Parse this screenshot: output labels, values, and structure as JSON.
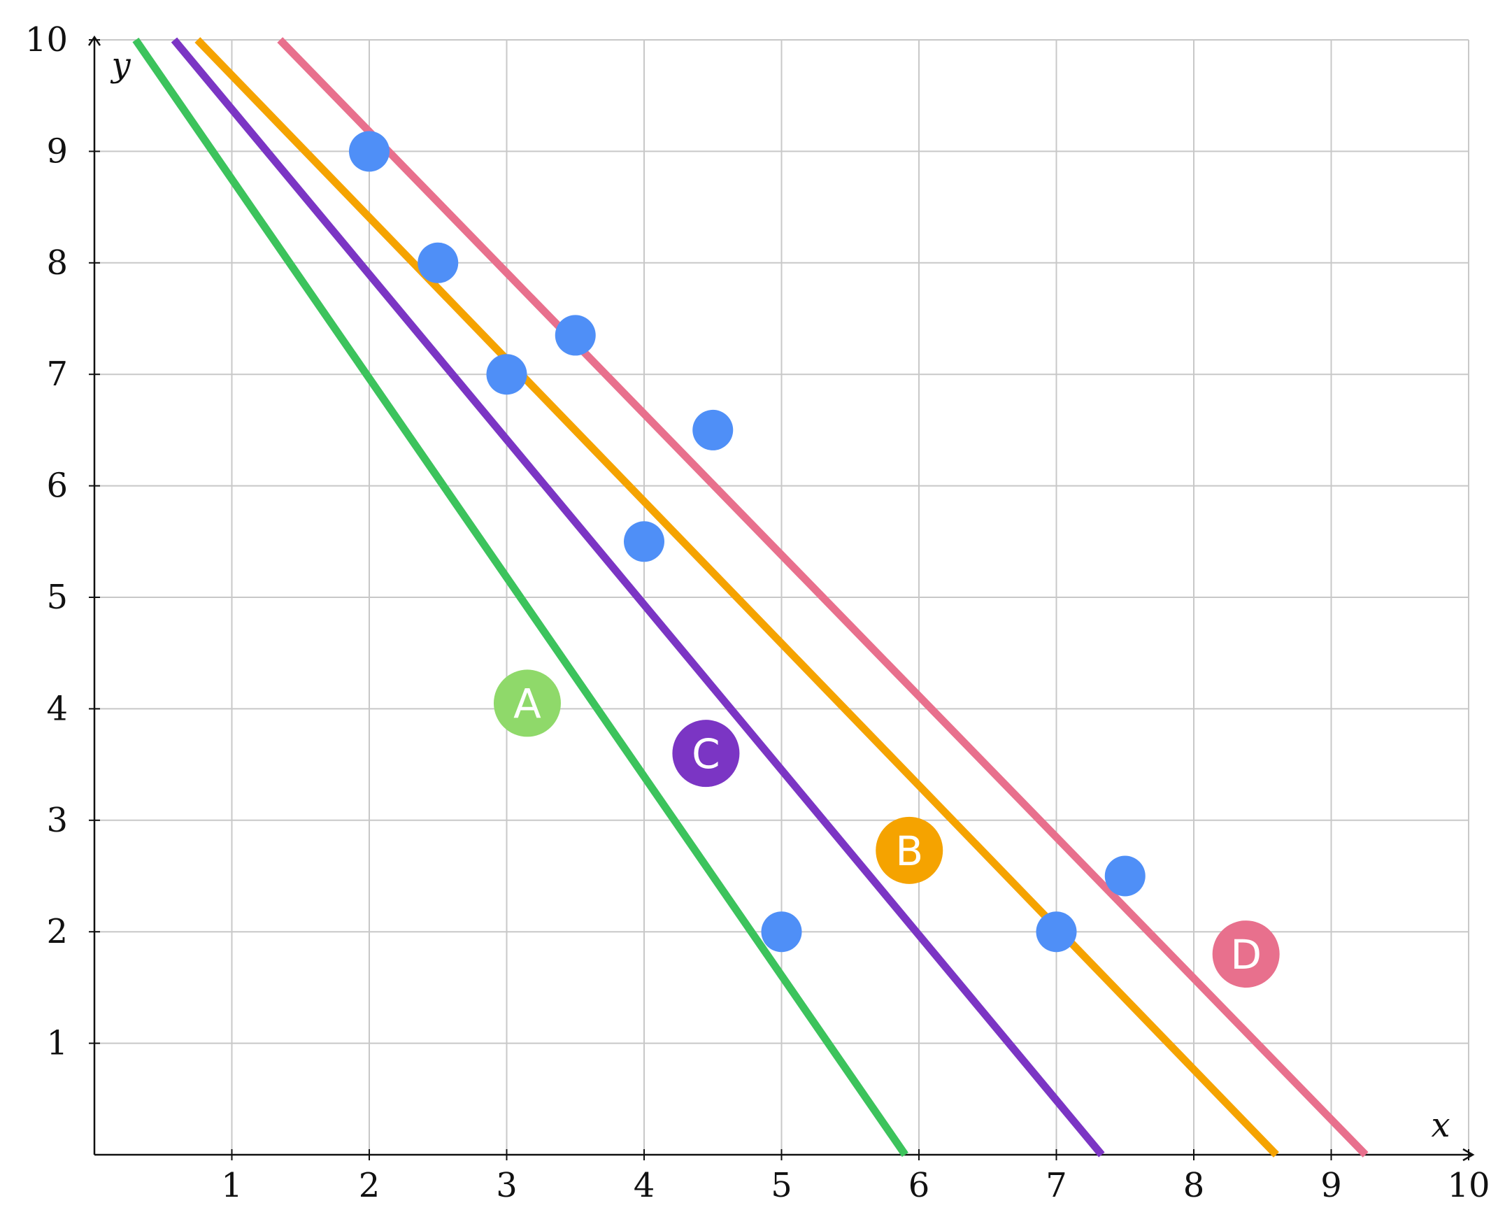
{
  "chart_data": {
    "type": "scatter",
    "xlabel": "x",
    "ylabel": "y",
    "xlim": [
      0,
      10
    ],
    "ylim": [
      0,
      10
    ],
    "grid": true,
    "x_ticks": [
      "1",
      "2",
      "3",
      "4",
      "5",
      "6",
      "7",
      "8",
      "9",
      "10"
    ],
    "y_ticks": [
      "1",
      "2",
      "3",
      "4",
      "5",
      "6",
      "7",
      "8",
      "9",
      "10"
    ],
    "points": {
      "color": "#4f8ff7",
      "x": [
        2,
        2.5,
        3,
        3.5,
        4,
        4.5,
        5,
        7,
        7.5
      ],
      "y": [
        9,
        8,
        7,
        7.35,
        5.5,
        6.5,
        2,
        2,
        2.5
      ]
    },
    "lines": [
      {
        "name": "A",
        "color": "#3cc35c",
        "badge_color": "#8fd96a",
        "p1": [
          0.3,
          10
        ],
        "p2": [
          5.9,
          0
        ],
        "label_at": [
          3.15,
          4.05
        ]
      },
      {
        "name": "B",
        "color": "#f5a300",
        "badge_color": "#f5a300",
        "p1": [
          0.75,
          10
        ],
        "p2": [
          8.6,
          0
        ],
        "label_at": [
          5.93,
          2.73
        ]
      },
      {
        "name": "C",
        "color": "#7b35c4",
        "badge_color": "#7b35c4",
        "p1": [
          0.58,
          10
        ],
        "p2": [
          7.33,
          0
        ],
        "label_at": [
          4.45,
          3.6
        ]
      },
      {
        "name": "D",
        "color": "#e8708d",
        "badge_color": "#e8708d",
        "p1": [
          1.35,
          10
        ],
        "p2": [
          9.25,
          0
        ],
        "label_at": [
          8.38,
          1.8
        ]
      }
    ]
  }
}
